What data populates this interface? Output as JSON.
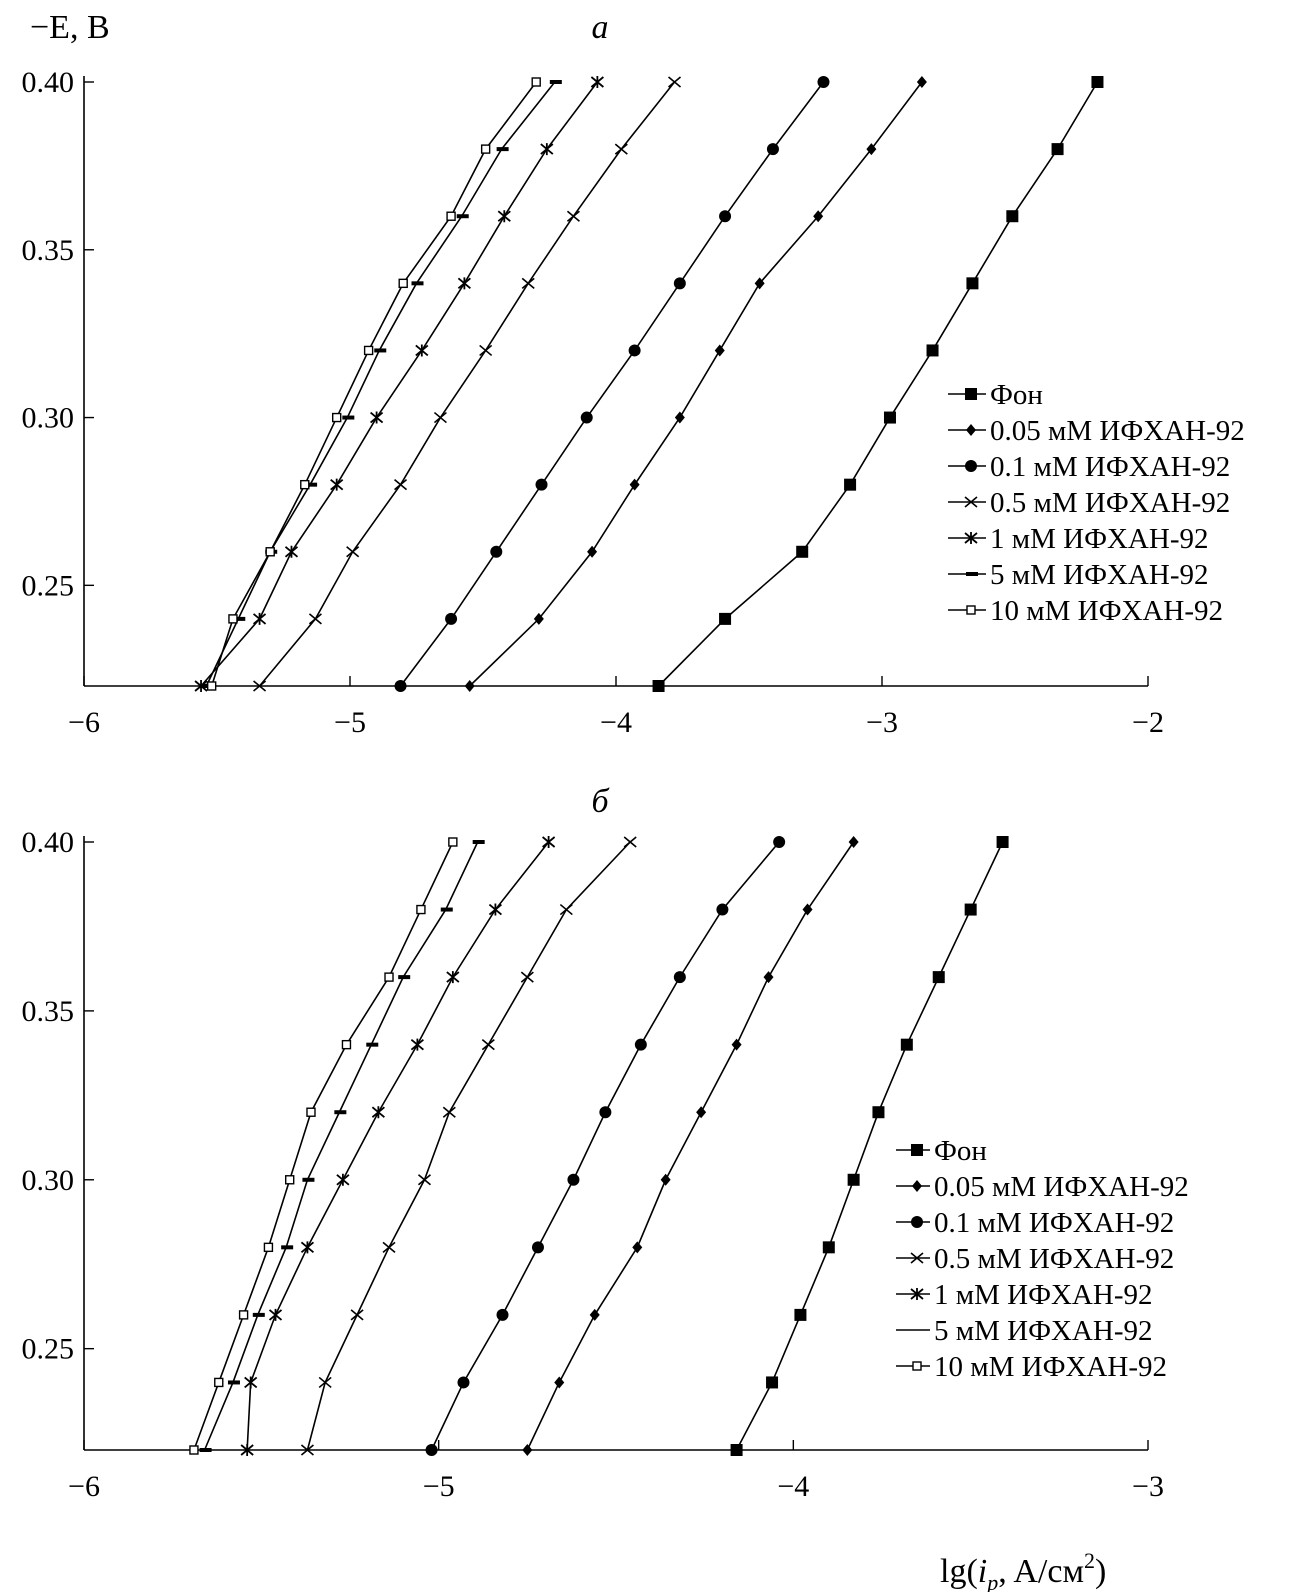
{
  "figure": {
    "y_label": "−E, В",
    "x_label": "lg(i_p, A/см²)",
    "x_label_base": "lg(",
    "x_label_i": "i",
    "x_label_sub": "p",
    "x_label_rest": ", A/см",
    "x_label_sup": "2",
    "x_label_close": ")"
  },
  "chart_data": [
    {
      "type": "line",
      "title": "а",
      "ylabel": "−E, В",
      "xlabel": "",
      "xlim": [
        -6,
        -2
      ],
      "ylim": [
        0.22,
        0.4
      ],
      "x_ticks": [
        "−6",
        "−5",
        "−4",
        "−3",
        "−2"
      ],
      "y_ticks": [
        "0.40",
        "0.35",
        "0.30",
        "0.25"
      ],
      "y_tick_values": [
        0.4,
        0.35,
        0.3,
        0.25
      ],
      "x_tick_values": [
        -6,
        -5,
        -4,
        -3,
        -2
      ],
      "legend_position": "right",
      "y": [
        0.22,
        0.24,
        0.26,
        0.28,
        0.3,
        0.32,
        0.34,
        0.36,
        0.38,
        0.4
      ],
      "series": [
        {
          "name": "Фон",
          "marker": "square",
          "x": [
            -3.84,
            -3.59,
            -3.3,
            -3.12,
            -2.97,
            -2.81,
            -2.66,
            -2.51,
            -2.34,
            -2.19
          ]
        },
        {
          "name": "0.05 мМ ИФХАН-92",
          "marker": "diamond",
          "x": [
            -4.55,
            -4.29,
            -4.09,
            -3.93,
            -3.76,
            -3.61,
            -3.46,
            -3.24,
            -3.04,
            -2.85
          ]
        },
        {
          "name": "0.1 мМ ИФХАН-92",
          "marker": "circle",
          "x": [
            -4.81,
            -4.62,
            -4.45,
            -4.28,
            -4.11,
            -3.93,
            -3.76,
            -3.59,
            -3.41,
            -3.22
          ]
        },
        {
          "name": "0.5 мМ ИФХАН-92",
          "marker": "x",
          "x": [
            -5.34,
            -5.13,
            -4.99,
            -4.81,
            -4.66,
            -4.49,
            -4.33,
            -4.16,
            -3.98,
            -3.78
          ]
        },
        {
          "name": "1 мМ ИФХАН-92",
          "marker": "star",
          "x": [
            -5.56,
            -5.34,
            -5.22,
            -5.05,
            -4.9,
            -4.73,
            -4.57,
            -4.42,
            -4.26,
            -4.07
          ]
        },
        {
          "name": "5 мМ ИФХАН-92",
          "marker": "dash",
          "x": [
            -5.54,
            -5.42,
            -5.3,
            -5.15,
            -5.01,
            -4.89,
            -4.75,
            -4.58,
            -4.43,
            -4.23
          ]
        },
        {
          "name": "10 мМ ИФХАН-92",
          "marker": "open-square",
          "x": [
            -5.52,
            -5.44,
            -5.3,
            -5.17,
            -5.05,
            -4.93,
            -4.8,
            -4.62,
            -4.49,
            -4.3
          ]
        }
      ]
    },
    {
      "type": "line",
      "title": "б",
      "ylabel": "",
      "xlabel": "lg(i_p, A/см²)",
      "xlim": [
        -6,
        -3
      ],
      "ylim": [
        0.22,
        0.4
      ],
      "x_ticks": [
        "−6",
        "−5",
        "−4",
        "−3"
      ],
      "y_ticks": [
        "0.40",
        "0.35",
        "0.30",
        "0.25"
      ],
      "y_tick_values": [
        0.4,
        0.35,
        0.3,
        0.25
      ],
      "x_tick_values": [
        -6,
        -5,
        -4,
        -3
      ],
      "legend_position": "right",
      "y": [
        0.22,
        0.24,
        0.26,
        0.28,
        0.3,
        0.32,
        0.34,
        0.36,
        0.38,
        0.4
      ],
      "series": [
        {
          "name": "Фон",
          "marker": "square",
          "x": [
            -4.16,
            -4.06,
            -3.98,
            -3.9,
            -3.83,
            -3.76,
            -3.68,
            -3.59,
            -3.5,
            -3.41
          ]
        },
        {
          "name": "0.05 мМ ИФХАН-92",
          "marker": "diamond",
          "x": [
            -4.75,
            -4.66,
            -4.56,
            -4.44,
            -4.36,
            -4.26,
            -4.16,
            -4.07,
            -3.96,
            -3.83
          ]
        },
        {
          "name": "0.1 мМ ИФХАН-92",
          "marker": "circle",
          "x": [
            -5.02,
            -4.93,
            -4.82,
            -4.72,
            -4.62,
            -4.53,
            -4.43,
            -4.32,
            -4.2,
            -4.04
          ]
        },
        {
          "name": "0.5 мМ ИФХАН-92",
          "marker": "x",
          "x": [
            -5.37,
            -5.32,
            -5.23,
            -5.14,
            -5.04,
            -4.97,
            -4.86,
            -4.75,
            -4.64,
            -4.46
          ]
        },
        {
          "name": "1 мМ ИФХАН-92",
          "marker": "star",
          "x": [
            -5.54,
            -5.53,
            -5.46,
            -5.37,
            -5.27,
            -5.17,
            -5.06,
            -4.96,
            -4.84,
            -4.69
          ]
        },
        {
          "name": "5 мМ ИФХАН-92",
          "marker": "dash",
          "x": [
            -5.66,
            -5.58,
            -5.51,
            -5.43,
            -5.37,
            -5.28,
            -5.19,
            -5.1,
            -4.98,
            -4.89
          ]
        },
        {
          "name": "10 мМ ИФХАН-92",
          "marker": "open-square",
          "x": [
            -5.69,
            -5.62,
            -5.55,
            -5.48,
            -5.42,
            -5.36,
            -5.26,
            -5.14,
            -5.05,
            -4.96
          ]
        }
      ]
    }
  ]
}
